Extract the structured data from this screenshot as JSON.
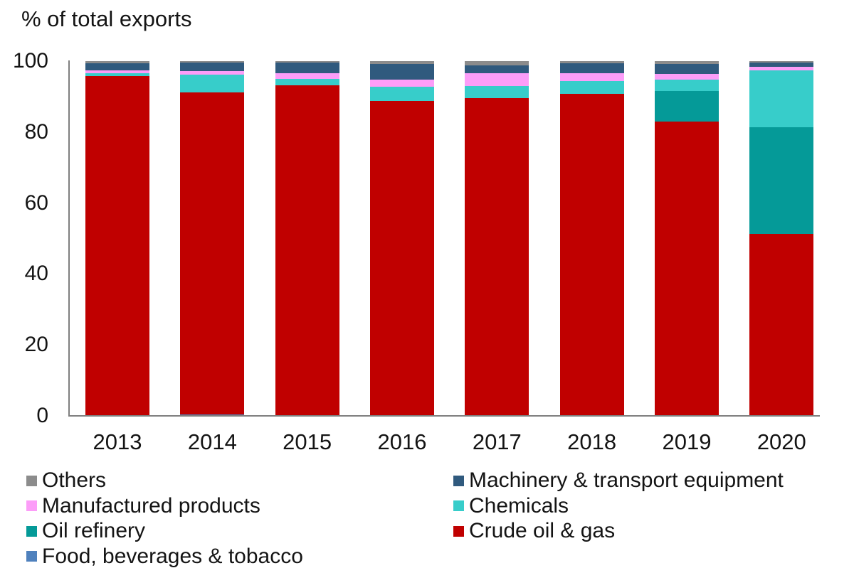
{
  "chart_data": {
    "type": "bar",
    "stacked": true,
    "title": "% of total exports",
    "xlabel": "",
    "ylabel": "% of total exports",
    "ylim": [
      0,
      100
    ],
    "yticks": [
      0,
      20,
      40,
      60,
      80,
      100
    ],
    "grid": false,
    "axis_color": "#7f7f7f",
    "text_color": "#141414",
    "legend_position": "bottom",
    "categories": [
      "2013",
      "2014",
      "2015",
      "2016",
      "2017",
      "2018",
      "2019",
      "2020"
    ],
    "series": [
      {
        "name": "Food, beverages & tobacco",
        "color": "#4f81bd",
        "values": [
          0,
          0.4,
          0,
          0,
          0,
          0,
          0,
          0
        ]
      },
      {
        "name": "Crude oil & gas",
        "color": "#c00000",
        "values": [
          95.8,
          90.8,
          93.2,
          88.8,
          89.5,
          90.7,
          82.9,
          51.4
        ]
      },
      {
        "name": "Oil refinery",
        "color": "#059a98",
        "values": [
          0,
          0,
          0,
          0,
          0,
          0,
          8.6,
          29.9
        ]
      },
      {
        "name": "Chemicals",
        "color": "#37cdca",
        "values": [
          0.7,
          5.0,
          1.7,
          4.0,
          3.5,
          3.7,
          3.3,
          16.2
        ]
      },
      {
        "name": "Manufactured products",
        "color": "#fc9df8",
        "values": [
          1.0,
          1.1,
          1.8,
          2.0,
          3.7,
          2.2,
          1.7,
          1.0
        ]
      },
      {
        "name": "Machinery & transport equipment",
        "color": "#305a7e",
        "values": [
          1.9,
          2.4,
          2.9,
          4.4,
          2.1,
          2.9,
          2.8,
          1.1
        ]
      },
      {
        "name": "Others",
        "color": "#8c8c8c",
        "values": [
          0.6,
          0.3,
          0.4,
          0.8,
          1.2,
          0.5,
          0.7,
          0.4
        ]
      }
    ],
    "legend_columns": [
      [
        "Others",
        "Manufactured products",
        "Oil refinery",
        "Food, beverages & tobacco"
      ],
      [
        "Machinery & transport equipment",
        "Chemicals",
        "Crude oil & gas"
      ]
    ]
  }
}
